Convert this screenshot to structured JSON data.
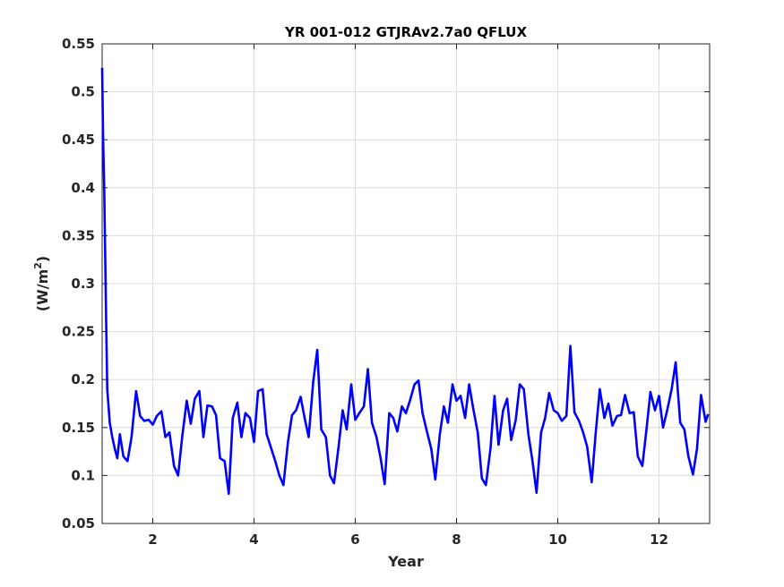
{
  "chart_data": {
    "type": "line",
    "title": "YR 001-012 GTJRAv2.7a0 QFLUX",
    "xlabel": "Year",
    "ylabel": "(W/m",
    "ylabel_sup": "2",
    "ylabel_close": ")",
    "xlim": [
      1,
      13
    ],
    "ylim": [
      0.05,
      0.55
    ],
    "xticks": [
      2,
      4,
      6,
      8,
      10,
      12
    ],
    "xtick_labels": [
      "2",
      "4",
      "6",
      "8",
      "10",
      "12"
    ],
    "yticks": [
      0.05,
      0.1,
      0.15,
      0.2,
      0.25,
      0.3,
      0.35,
      0.4,
      0.45,
      0.5,
      0.55
    ],
    "ytick_labels": [
      "0.05",
      "0.1",
      "0.15",
      "0.2",
      "0.25",
      "0.3",
      "0.35",
      "0.4",
      "0.45",
      "0.5",
      "0.55"
    ],
    "grid": true,
    "line_color": "#0000ff",
    "series": [
      {
        "x": [
          1.0,
          1.02,
          1.04,
          1.06,
          1.08,
          1.1,
          1.15,
          1.2,
          1.25,
          1.3,
          1.35,
          1.42,
          1.5,
          1.58,
          1.67,
          1.75,
          1.83,
          1.92,
          2.0,
          2.08,
          2.17,
          2.25,
          2.33,
          2.42,
          2.5,
          2.58,
          2.67,
          2.75,
          2.83,
          2.92,
          3.0,
          3.08,
          3.17,
          3.25,
          3.33,
          3.42,
          3.5,
          3.58,
          3.67,
          3.75,
          3.83,
          3.92,
          4.0,
          4.08,
          4.17,
          4.25,
          4.33,
          4.42,
          4.5,
          4.58,
          4.67,
          4.75,
          4.83,
          4.92,
          5.0,
          5.08,
          5.17,
          5.25,
          5.33,
          5.42,
          5.5,
          5.58,
          5.67,
          5.75,
          5.83,
          5.92,
          6.0,
          6.08,
          6.17,
          6.25,
          6.33,
          6.42,
          6.5,
          6.58,
          6.67,
          6.75,
          6.83,
          6.92,
          7.0,
          7.08,
          7.17,
          7.25,
          7.33,
          7.42,
          7.5,
          7.58,
          7.67,
          7.75,
          7.83,
          7.92,
          8.0,
          8.08,
          8.17,
          8.25,
          8.33,
          8.42,
          8.5,
          8.58,
          8.67,
          8.75,
          8.83,
          8.92,
          9.0,
          9.08,
          9.17,
          9.25,
          9.33,
          9.42,
          9.5,
          9.58,
          9.67,
          9.75,
          9.83,
          9.92,
          10.0,
          10.08,
          10.17,
          10.25,
          10.33,
          10.42,
          10.5,
          10.58,
          10.67,
          10.75,
          10.83,
          10.92,
          11.0,
          11.08,
          11.17,
          11.25,
          11.33,
          11.42,
          11.5,
          11.58,
          11.67,
          11.75,
          11.83,
          11.92,
          12.0,
          12.08,
          12.17,
          12.25,
          12.33,
          12.42,
          12.5,
          12.58,
          12.67,
          12.75,
          12.83,
          12.92,
          12.97
        ],
        "y": [
          0.525,
          0.45,
          0.4,
          0.33,
          0.26,
          0.19,
          0.155,
          0.14,
          0.128,
          0.118,
          0.143,
          0.12,
          0.115,
          0.14,
          0.188,
          0.162,
          0.157,
          0.158,
          0.153,
          0.162,
          0.167,
          0.14,
          0.145,
          0.11,
          0.1,
          0.14,
          0.178,
          0.154,
          0.18,
          0.188,
          0.14,
          0.173,
          0.172,
          0.163,
          0.118,
          0.115,
          0.081,
          0.16,
          0.176,
          0.14,
          0.165,
          0.16,
          0.135,
          0.188,
          0.19,
          0.143,
          0.13,
          0.115,
          0.1,
          0.09,
          0.135,
          0.163,
          0.168,
          0.182,
          0.16,
          0.14,
          0.198,
          0.231,
          0.148,
          0.14,
          0.1,
          0.092,
          0.13,
          0.168,
          0.148,
          0.195,
          0.158,
          0.165,
          0.172,
          0.211,
          0.155,
          0.14,
          0.118,
          0.091,
          0.165,
          0.16,
          0.146,
          0.172,
          0.165,
          0.178,
          0.195,
          0.199,
          0.165,
          0.145,
          0.128,
          0.096,
          0.143,
          0.172,
          0.155,
          0.195,
          0.178,
          0.183,
          0.16,
          0.195,
          0.17,
          0.145,
          0.097,
          0.09,
          0.128,
          0.183,
          0.132,
          0.168,
          0.18,
          0.137,
          0.158,
          0.195,
          0.19,
          0.143,
          0.115,
          0.082,
          0.145,
          0.16,
          0.186,
          0.168,
          0.165,
          0.157,
          0.162,
          0.235,
          0.166,
          0.157,
          0.145,
          0.13,
          0.093,
          0.145,
          0.19,
          0.16,
          0.175,
          0.152,
          0.162,
          0.163,
          0.184,
          0.165,
          0.166,
          0.12,
          0.11,
          0.147,
          0.187,
          0.168,
          0.183,
          0.15,
          0.17,
          0.19,
          0.218,
          0.155,
          0.148,
          0.12,
          0.101,
          0.128,
          0.184,
          0.156,
          0.164
        ]
      }
    ]
  }
}
